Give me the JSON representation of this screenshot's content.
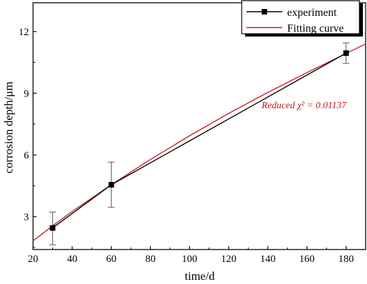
{
  "chart_data": {
    "type": "line",
    "xlabel": "time/d",
    "ylabel": "corrosion depth/μm",
    "xlim": [
      20,
      190
    ],
    "ylim": [
      1.4,
      13.4
    ],
    "xticks": [
      20,
      40,
      60,
      80,
      100,
      120,
      140,
      160,
      180
    ],
    "yticks": [
      3,
      6,
      9,
      12
    ],
    "grid": false,
    "legend_position": "top-right",
    "annotation": "Reduced χ² = 0.01137",
    "colors": {
      "experiment": "#000000",
      "fit": "#d01c24",
      "annotation": "#c8181e"
    },
    "series": [
      {
        "name": "experiment",
        "marker": "square",
        "x": [
          30,
          60,
          180
        ],
        "y": [
          2.45,
          4.55,
          10.95
        ],
        "err_low": [
          1.63,
          3.45,
          10.45
        ],
        "err_high": [
          3.22,
          5.65,
          11.45
        ]
      },
      {
        "name": "Fitting curve",
        "type": "line",
        "x": [
          20,
          30,
          40,
          60,
          80,
          100,
          120,
          140,
          160,
          180,
          190
        ],
        "y": [
          1.82,
          2.55,
          3.25,
          4.55,
          5.78,
          6.93,
          8.02,
          9.04,
          10.0,
          10.93,
          11.4
        ]
      }
    ]
  }
}
